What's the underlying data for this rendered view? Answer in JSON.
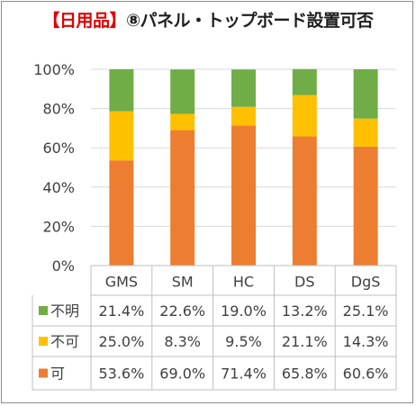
{
  "title": {
    "prefix": "【日用品】",
    "main": "⑧パネル・トップボード設置可否"
  },
  "colors": {
    "不明": "#70ad47",
    "不可": "#ffc000",
    "可": "#ed7d31"
  },
  "chart_data": {
    "type": "bar",
    "stacked": true,
    "percent": true,
    "title": "【日用品】⑧パネル・トップボード設置可否",
    "categories": [
      "GMS",
      "SM",
      "HC",
      "DS",
      "DgS"
    ],
    "ylim": [
      0,
      100
    ],
    "yticks": [
      "0%",
      "20%",
      "40%",
      "60%",
      "80%",
      "100%"
    ],
    "grid": true,
    "series": [
      {
        "name": "可",
        "values": [
          53.6,
          69.0,
          71.4,
          65.8,
          60.6
        ],
        "labels": [
          "53.6%",
          "69.0%",
          "71.4%",
          "65.8%",
          "60.6%"
        ]
      },
      {
        "name": "不可",
        "values": [
          25.0,
          8.3,
          9.5,
          21.1,
          14.3
        ],
        "labels": [
          "25.0%",
          "8.3%",
          "9.5%",
          "21.1%",
          "14.3%"
        ]
      },
      {
        "name": "不明",
        "values": [
          21.4,
          22.6,
          19.0,
          13.2,
          25.1
        ],
        "labels": [
          "21.4%",
          "22.6%",
          "19.0%",
          "13.2%",
          "25.1%"
        ]
      }
    ],
    "table_row_order": [
      "不明",
      "不可",
      "可"
    ]
  }
}
